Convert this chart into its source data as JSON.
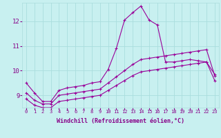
{
  "title": "",
  "xlabel": "Windchill (Refroidissement éolien,°C)",
  "ylabel": "",
  "background_color": "#c8f0f0",
  "line_color": "#990099",
  "grid_color": "#aadddd",
  "axis_color": "#880088",
  "tick_color": "#880088",
  "xlim": [
    -0.5,
    23.5
  ],
  "ylim": [
    8.5,
    12.75
  ],
  "xticks": [
    0,
    1,
    2,
    3,
    4,
    5,
    6,
    7,
    8,
    9,
    10,
    11,
    12,
    13,
    14,
    15,
    16,
    17,
    18,
    19,
    20,
    21,
    22,
    23
  ],
  "yticks": [
    9,
    10,
    11,
    12
  ],
  "line1_x": [
    0,
    1,
    2,
    3,
    4,
    5,
    6,
    7,
    8,
    9,
    10,
    11,
    12,
    13,
    14,
    15,
    16,
    17,
    18,
    19,
    20,
    21,
    22,
    23
  ],
  "line1_y": [
    9.5,
    9.1,
    8.75,
    8.75,
    9.2,
    9.3,
    9.35,
    9.4,
    9.5,
    9.55,
    10.05,
    10.9,
    12.05,
    12.35,
    12.62,
    12.05,
    11.85,
    10.35,
    10.35,
    10.4,
    10.45,
    10.4,
    10.35,
    9.85
  ],
  "line2_x": [
    0,
    1,
    2,
    3,
    4,
    5,
    6,
    7,
    8,
    9,
    10,
    11,
    12,
    13,
    14,
    15,
    16,
    17,
    18,
    19,
    20,
    21,
    22,
    23
  ],
  "line2_y": [
    9.1,
    8.8,
    8.65,
    8.65,
    9.0,
    9.05,
    9.1,
    9.15,
    9.2,
    9.25,
    9.5,
    9.75,
    10.0,
    10.25,
    10.45,
    10.5,
    10.55,
    10.6,
    10.65,
    10.7,
    10.75,
    10.8,
    10.85,
    9.8
  ],
  "line3_x": [
    0,
    1,
    2,
    3,
    4,
    5,
    6,
    7,
    8,
    9,
    10,
    11,
    12,
    13,
    14,
    15,
    16,
    17,
    18,
    19,
    20,
    21,
    22,
    23
  ],
  "line3_y": [
    8.85,
    8.6,
    8.5,
    8.5,
    8.75,
    8.8,
    8.85,
    8.9,
    8.95,
    9.0,
    9.2,
    9.4,
    9.6,
    9.8,
    9.95,
    10.0,
    10.05,
    10.1,
    10.15,
    10.2,
    10.25,
    10.3,
    10.35,
    9.6
  ],
  "marker": "+",
  "markersize": 3,
  "linewidth": 0.8,
  "tick_fontsize": 5.0,
  "label_fontsize": 6.0
}
